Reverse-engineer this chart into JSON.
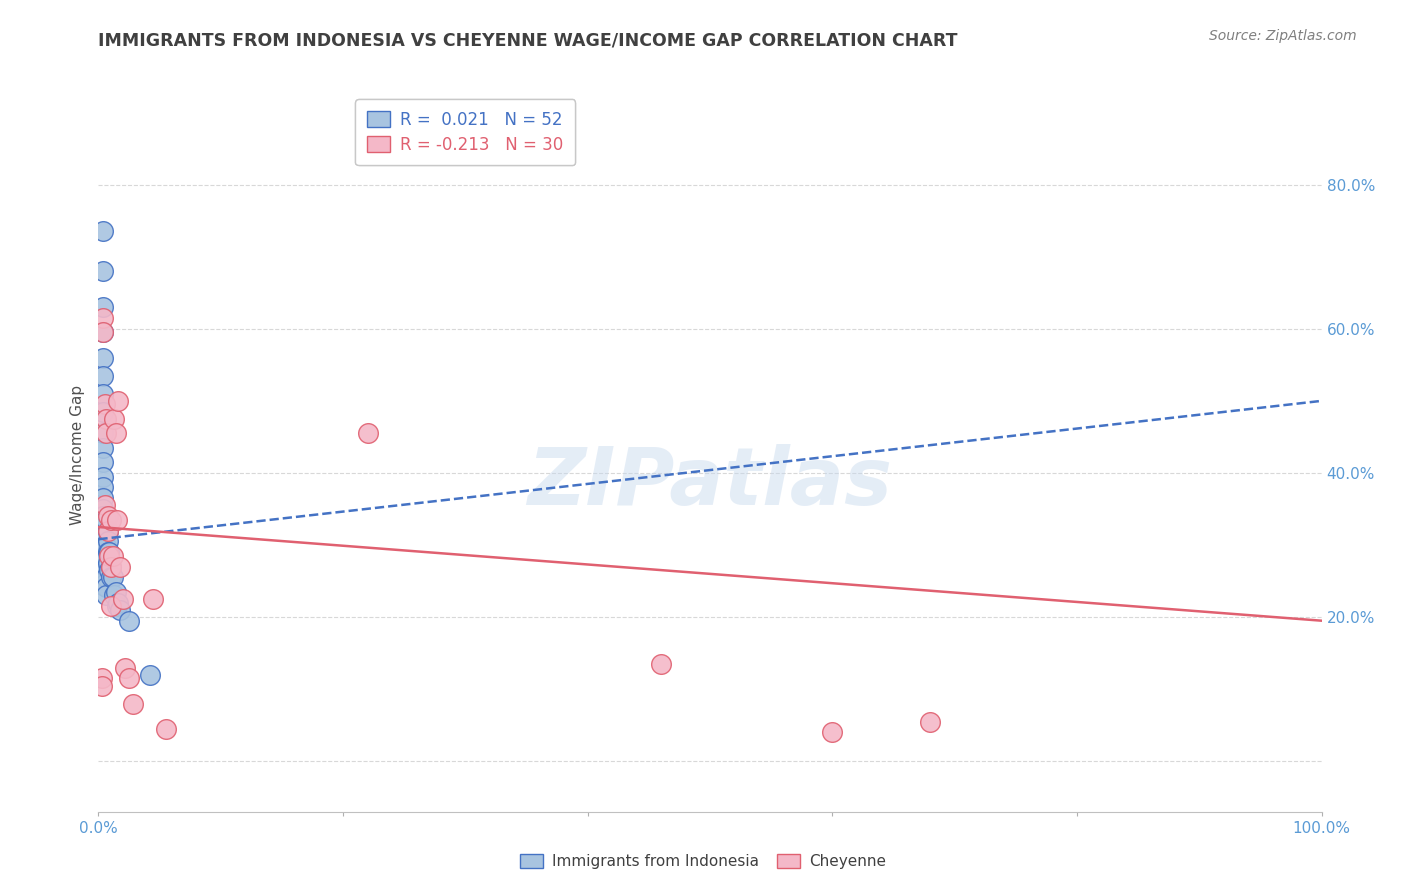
{
  "title": "IMMIGRANTS FROM INDONESIA VS CHEYENNE WAGE/INCOME GAP CORRELATION CHART",
  "source": "Source: ZipAtlas.com",
  "ylabel": "Wage/Income Gap",
  "watermark": "ZIPatlas",
  "blue_label": "Immigrants from Indonesia",
  "pink_label": "Cheyenne",
  "blue_R": "0.021",
  "blue_N": "52",
  "pink_R": "-0.213",
  "pink_N": "30",
  "xlim": [
    0.0,
    1.0
  ],
  "ylim": [
    -0.07,
    0.92
  ],
  "xticks": [
    0.0,
    0.2,
    0.4,
    0.6,
    0.8,
    1.0
  ],
  "xtick_labels": [
    "0.0%",
    "",
    "",
    "",
    "",
    "100.0%"
  ],
  "yticks": [
    0.0,
    0.2,
    0.4,
    0.6,
    0.8
  ],
  "ytick_labels": [
    "",
    "20.0%",
    "40.0%",
    "60.0%",
    "80.0%"
  ],
  "blue_x": [
    0.004,
    0.004,
    0.004,
    0.004,
    0.004,
    0.004,
    0.004,
    0.004,
    0.004,
    0.004,
    0.004,
    0.004,
    0.004,
    0.004,
    0.004,
    0.004,
    0.004,
    0.004,
    0.004,
    0.004,
    0.004,
    0.004,
    0.004,
    0.004,
    0.004,
    0.004,
    0.004,
    0.004,
    0.006,
    0.006,
    0.006,
    0.006,
    0.006,
    0.006,
    0.006,
    0.006,
    0.008,
    0.008,
    0.008,
    0.008,
    0.009,
    0.009,
    0.01,
    0.01,
    0.012,
    0.013,
    0.014,
    0.015,
    0.016,
    0.018,
    0.025,
    0.042
  ],
  "blue_y": [
    0.735,
    0.68,
    0.63,
    0.595,
    0.56,
    0.535,
    0.51,
    0.485,
    0.455,
    0.435,
    0.415,
    0.395,
    0.38,
    0.365,
    0.35,
    0.34,
    0.335,
    0.325,
    0.315,
    0.305,
    0.295,
    0.285,
    0.278,
    0.272,
    0.265,
    0.258,
    0.252,
    0.245,
    0.335,
    0.315,
    0.298,
    0.282,
    0.268,
    0.255,
    0.242,
    0.23,
    0.32,
    0.305,
    0.29,
    0.275,
    0.29,
    0.265,
    0.27,
    0.255,
    0.255,
    0.23,
    0.235,
    0.215,
    0.22,
    0.21,
    0.195,
    0.12
  ],
  "pink_x": [
    0.003,
    0.003,
    0.004,
    0.004,
    0.005,
    0.005,
    0.006,
    0.006,
    0.008,
    0.008,
    0.009,
    0.01,
    0.01,
    0.01,
    0.012,
    0.013,
    0.014,
    0.015,
    0.016,
    0.018,
    0.02,
    0.022,
    0.025,
    0.028,
    0.045,
    0.055,
    0.22,
    0.46,
    0.6,
    0.68
  ],
  "pink_y": [
    0.115,
    0.105,
    0.615,
    0.595,
    0.495,
    0.355,
    0.475,
    0.455,
    0.34,
    0.32,
    0.285,
    0.335,
    0.27,
    0.215,
    0.285,
    0.475,
    0.455,
    0.335,
    0.5,
    0.27,
    0.225,
    0.13,
    0.115,
    0.08,
    0.225,
    0.045,
    0.455,
    0.135,
    0.04,
    0.055
  ],
  "blue_color": "#a8c4e0",
  "pink_color": "#f4b8c8",
  "blue_edge_color": "#4472c4",
  "pink_edge_color": "#e06070",
  "blue_line_color": "#4472c4",
  "pink_line_color": "#e06070",
  "grid_color": "#d8d8d8",
  "tick_color": "#5b9bd5",
  "title_color": "#404040",
  "source_color": "#808080",
  "watermark_color": "#c5d8ed"
}
